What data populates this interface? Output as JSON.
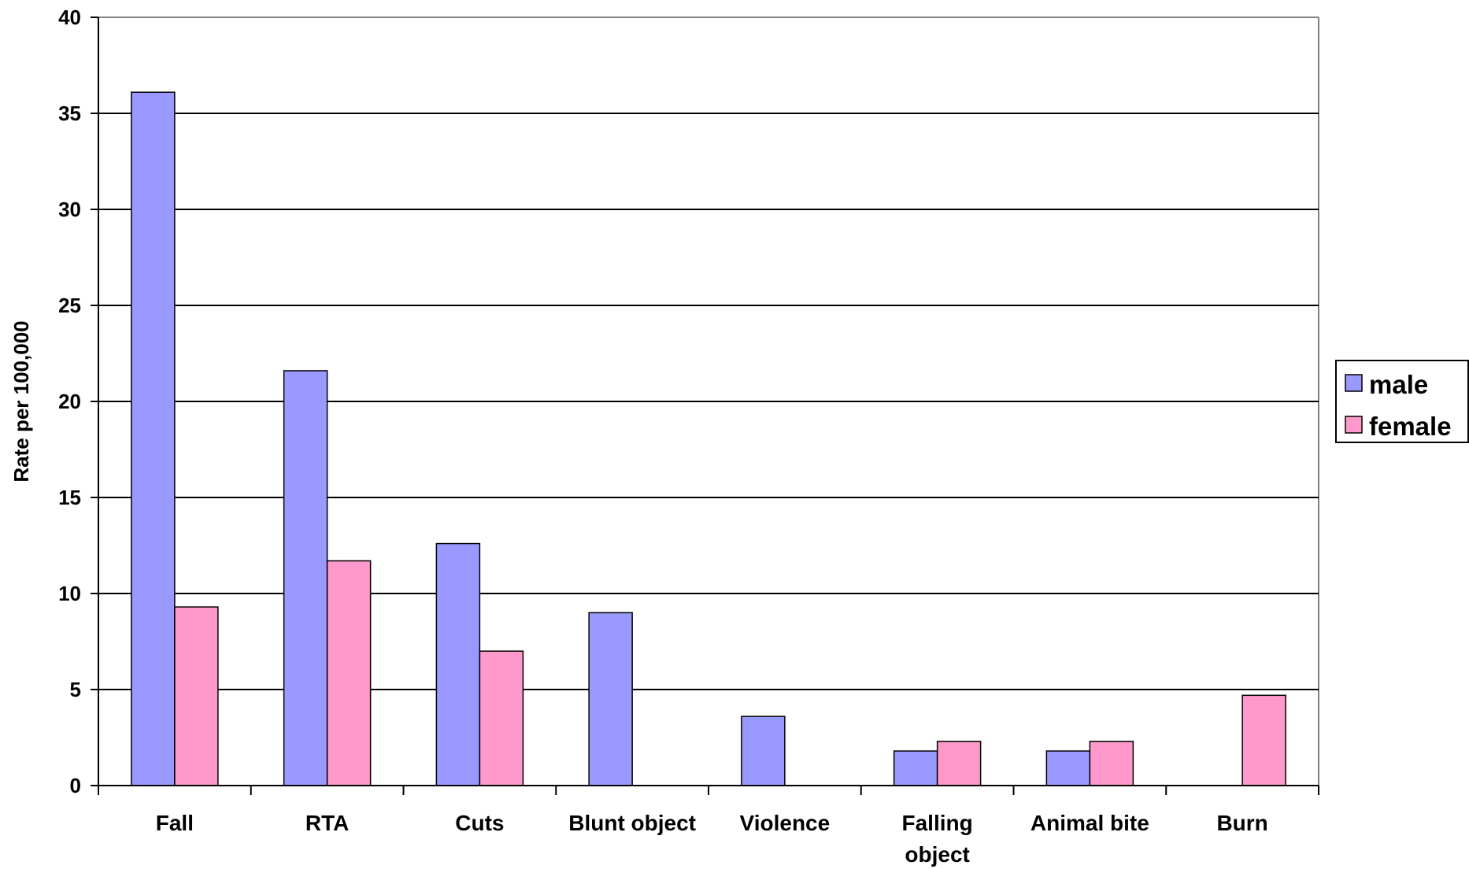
{
  "chart_data": {
    "type": "bar",
    "title": "",
    "xlabel": "",
    "ylabel": "Rate per 100,000",
    "ylim": [
      0,
      40
    ],
    "yticks": [
      0,
      5,
      10,
      15,
      20,
      25,
      30,
      35,
      40
    ],
    "grid": true,
    "legend_position": "right",
    "categories": [
      [
        "Fall"
      ],
      [
        "RTA"
      ],
      [
        "Cuts"
      ],
      [
        "Blunt object"
      ],
      [
        "Violence"
      ],
      [
        "Falling",
        "object"
      ],
      [
        "Animal bite"
      ],
      [
        "Burn"
      ]
    ],
    "series": [
      {
        "name": "male",
        "color": "#9999ff",
        "values": [
          36.1,
          21.6,
          12.6,
          9.0,
          3.6,
          1.8,
          1.8,
          0
        ]
      },
      {
        "name": "female",
        "color": "#ff99cc",
        "values": [
          9.3,
          11.7,
          7.0,
          0,
          0,
          2.3,
          2.3,
          4.7
        ]
      }
    ]
  }
}
